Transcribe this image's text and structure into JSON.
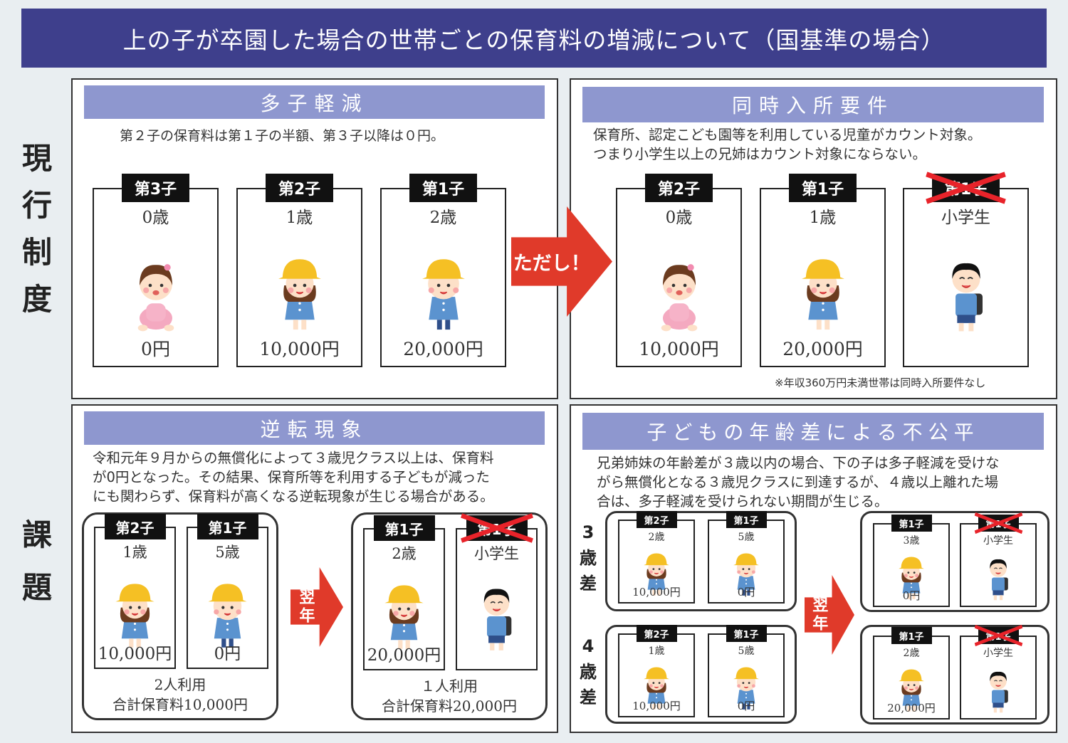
{
  "title": "上の子が卒園した場合の世帯ごとの保育料の増減について（国基準の場合）",
  "side_labels": {
    "current": [
      "現",
      "行",
      "制",
      "度"
    ],
    "issues": [
      "課",
      "題"
    ]
  },
  "colors": {
    "title_bg": "#3e3f8c",
    "header_bg": "#8e97cf",
    "arrow": "#e03a2a",
    "cross": "#e8232a"
  },
  "panels": {
    "multi_child": {
      "header": "多子軽減",
      "desc": "第２子の保育料は第１子の半額、第３子以降は０円。",
      "cards": [
        {
          "label": "第3子",
          "age": "0歳",
          "price": "0円",
          "figure": "baby"
        },
        {
          "label": "第2子",
          "age": "1歳",
          "price": "10,000円",
          "figure": "girl"
        },
        {
          "label": "第1子",
          "age": "2歳",
          "price": "20,000円",
          "figure": "boy"
        }
      ]
    },
    "arrow_label": "ただし！",
    "simultaneous": {
      "header": "同時入所要件",
      "desc": [
        "保育所、認定こども園等を利用している児童がカウント対象。",
        "つまり小学生以上の兄姉はカウント対象にならない。"
      ],
      "cards": [
        {
          "label": "第2子",
          "age": "0歳",
          "price": "10,000円",
          "figure": "baby"
        },
        {
          "label": "第1子",
          "age": "1歳",
          "price": "20,000円",
          "figure": "girl"
        },
        {
          "label": "第1子",
          "age": "小学生",
          "price": "",
          "figure": "student",
          "crossed": true
        }
      ],
      "note": "※年収360万円未満世帯は同時入所要件なし"
    },
    "reversal": {
      "header": "逆転現象",
      "desc": [
        "令和元年９月からの無償化によって３歳児クラス以上は、保育料",
        "が0円となった。その結果、保育所等を利用する子どもが減った",
        "にも関わらず、保育料が高くなる逆転現象が生じる場合がある。"
      ],
      "before": {
        "cards": [
          {
            "label": "第2子",
            "age": "1歳",
            "price": "10,000円",
            "figure": "girl"
          },
          {
            "label": "第1子",
            "age": "5歳",
            "price": "0円",
            "figure": "boy"
          }
        ],
        "summary": [
          "2人利用",
          "合計保育料10,000円"
        ]
      },
      "arrow_label": "翌年",
      "after": {
        "cards": [
          {
            "label": "第1子",
            "age": "2歳",
            "price": "20,000円",
            "figure": "girl"
          },
          {
            "label": "第1子",
            "age": "小学生",
            "price": "",
            "figure": "student",
            "crossed": true
          }
        ],
        "summary": [
          "１人利用",
          "合計保育料20,000円"
        ]
      }
    },
    "age_gap": {
      "header": "子どもの年齢差による不公平",
      "desc": [
        "兄弟姉妹の年齢差が３歳以内の場合、下の子は多子軽減を受けな",
        "がら無償化となる３歳児クラスに到達するが、４歳以上離れた場",
        "合は、多子軽減を受けられない期間が生じる。"
      ],
      "arrow_label": "翌年",
      "rows": [
        {
          "label": [
            "3",
            "歳",
            "差"
          ],
          "before": [
            {
              "label": "第2子",
              "age": "2歳",
              "price": "10,000円",
              "figure": "girl"
            },
            {
              "label": "第1子",
              "age": "5歳",
              "price": "0円",
              "figure": "boy"
            }
          ],
          "after": [
            {
              "label": "第1子",
              "age": "3歳",
              "price": "0円",
              "figure": "girl"
            },
            {
              "label": "第1子",
              "age": "小学生",
              "price": "",
              "figure": "student",
              "crossed": true
            }
          ]
        },
        {
          "label": [
            "4",
            "歳",
            "差"
          ],
          "before": [
            {
              "label": "第2子",
              "age": "1歳",
              "price": "10,000円",
              "figure": "girl"
            },
            {
              "label": "第1子",
              "age": "5歳",
              "price": "0円",
              "figure": "boy"
            }
          ],
          "after": [
            {
              "label": "第1子",
              "age": "2歳",
              "price": "20,000円",
              "figure": "girl"
            },
            {
              "label": "第1子",
              "age": "小学生",
              "price": "",
              "figure": "student",
              "crossed": true
            }
          ]
        }
      ]
    }
  }
}
